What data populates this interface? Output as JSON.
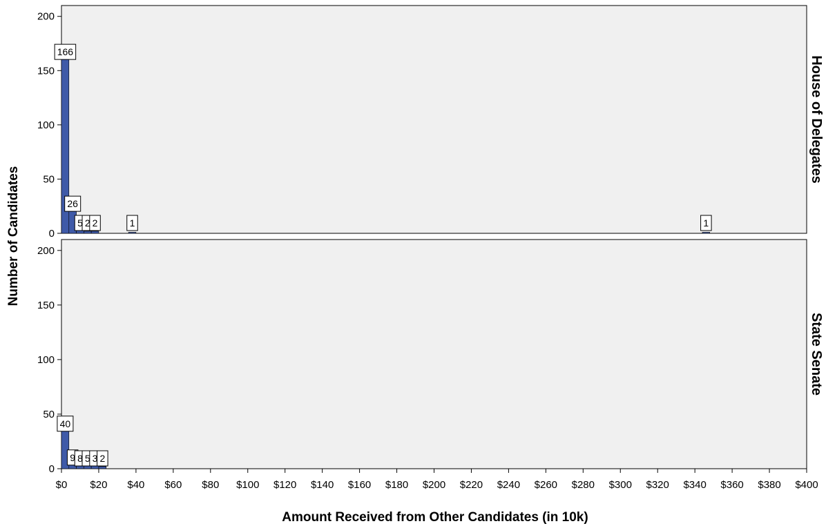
{
  "chart_data": {
    "type": "bar",
    "xlabel": "Amount Received from Other Candidates (in 10k)",
    "ylabel": "Number of Candidates",
    "x_ticks": [
      "$0",
      "$20",
      "$40",
      "$60",
      "$80",
      "$100",
      "$120",
      "$140",
      "$160",
      "$180",
      "$200",
      "$220",
      "$240",
      "$260",
      "$280",
      "$300",
      "$320",
      "$340",
      "$360",
      "$380",
      "$400"
    ],
    "xlim": [
      0,
      400
    ],
    "ylim": [
      0,
      210
    ],
    "y_ticks": [
      0,
      50,
      100,
      150,
      200
    ],
    "bin_width": 4,
    "colors": {
      "bar": "#3F5AA8",
      "panel_bg": "#F0F0F0"
    },
    "panels": [
      {
        "name": "House of Delegates",
        "bins": [
          {
            "x": 0,
            "value": 166
          },
          {
            "x": 4,
            "value": 26
          },
          {
            "x": 8,
            "value": 5
          },
          {
            "x": 12,
            "value": 2
          },
          {
            "x": 16,
            "value": 2
          },
          {
            "x": 36,
            "value": 1
          },
          {
            "x": 344,
            "value": 1
          }
        ]
      },
      {
        "name": "State Senate",
        "bins": [
          {
            "x": 0,
            "value": 40
          },
          {
            "x": 4,
            "value": 9
          },
          {
            "x": 8,
            "value": 8
          },
          {
            "x": 12,
            "value": 5
          },
          {
            "x": 16,
            "value": 3
          },
          {
            "x": 20,
            "value": 2
          }
        ]
      }
    ]
  }
}
